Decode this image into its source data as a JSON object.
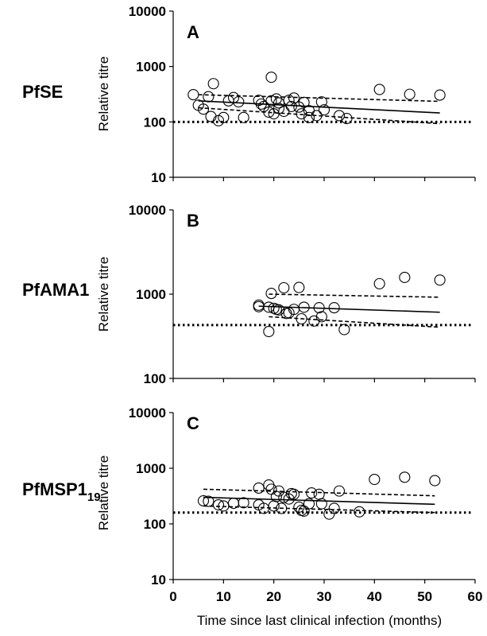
{
  "figure": {
    "xlabel": "Time since last clinical infection (months)"
  },
  "chart_data": [
    {
      "type": "scatter",
      "panel": "A",
      "antigen": "PfSE",
      "antigen_sub": "",
      "ylabel": "Relative titre",
      "yscale": "log",
      "ylim": [
        10,
        10000
      ],
      "yticks": [
        "10",
        "100",
        "1000",
        "10000"
      ],
      "xlim": [
        0,
        60
      ],
      "threshold": 100,
      "points": [
        [
          4,
          310
        ],
        [
          5,
          200
        ],
        [
          6,
          170
        ],
        [
          7,
          285
        ],
        [
          7.5,
          125
        ],
        [
          8,
          490
        ],
        [
          9,
          105
        ],
        [
          10,
          120
        ],
        [
          11,
          240
        ],
        [
          12,
          275
        ],
        [
          13,
          230
        ],
        [
          14,
          120
        ],
        [
          17,
          245
        ],
        [
          17.5,
          210
        ],
        [
          18,
          190
        ],
        [
          19,
          150
        ],
        [
          19.5,
          240
        ],
        [
          19.5,
          640
        ],
        [
          20,
          140
        ],
        [
          20.5,
          260
        ],
        [
          21,
          220
        ],
        [
          21,
          175
        ],
        [
          22,
          155
        ],
        [
          23,
          245
        ],
        [
          23.5,
          190
        ],
        [
          24,
          270
        ],
        [
          25,
          185
        ],
        [
          25.5,
          140
        ],
        [
          26,
          225
        ],
        [
          27,
          160
        ],
        [
          27,
          120
        ],
        [
          28.5,
          130
        ],
        [
          29.5,
          230
        ],
        [
          30,
          165
        ],
        [
          33,
          130
        ],
        [
          34.5,
          115
        ],
        [
          41,
          385
        ],
        [
          47,
          315
        ],
        [
          53,
          305
        ]
      ],
      "fit": [
        [
          5,
          240
        ],
        [
          53,
          145
        ]
      ],
      "ci_upper": [
        [
          5,
          310
        ],
        [
          53,
          235
        ]
      ],
      "ci_lower": [
        [
          5,
          180
        ],
        [
          53,
          93
        ]
      ]
    },
    {
      "type": "scatter",
      "panel": "B",
      "antigen": "PfAMA1",
      "antigen_sub": "",
      "ylabel": "Relative titre",
      "yscale": "log",
      "ylim": [
        100,
        10000
      ],
      "yticks": [
        "100",
        "1000",
        "10000"
      ],
      "xlim": [
        0,
        60
      ],
      "threshold": 430,
      "points": [
        [
          17,
          740
        ],
        [
          17,
          710
        ],
        [
          19,
          700
        ],
        [
          19,
          360
        ],
        [
          19.5,
          1020
        ],
        [
          20,
          680
        ],
        [
          20.5,
          660
        ],
        [
          21,
          650
        ],
        [
          22,
          1190
        ],
        [
          22.5,
          590
        ],
        [
          23,
          600
        ],
        [
          24,
          660
        ],
        [
          25,
          1200
        ],
        [
          25.5,
          510
        ],
        [
          26,
          700
        ],
        [
          28,
          480
        ],
        [
          29,
          690
        ],
        [
          29.5,
          540
        ],
        [
          32,
          690
        ],
        [
          34,
          380
        ],
        [
          41,
          1330
        ],
        [
          46,
          1580
        ],
        [
          53,
          1470
        ]
      ],
      "fit": [
        [
          17,
          720
        ],
        [
          53,
          610
        ]
      ],
      "ci_upper": [
        [
          19,
          1000
        ],
        [
          53,
          920
        ]
      ],
      "ci_lower": [
        [
          19,
          540
        ],
        [
          53,
          405
        ]
      ]
    },
    {
      "type": "scatter",
      "panel": "C",
      "antigen": "PfMSP1",
      "antigen_sub": "19",
      "ylabel": "Relative titre",
      "yscale": "log",
      "ylim": [
        10,
        10000
      ],
      "yticks": [
        "10",
        "100",
        "1000",
        "10000"
      ],
      "xlim": [
        0,
        60
      ],
      "threshold": 160,
      "points": [
        [
          6,
          260
        ],
        [
          7,
          255
        ],
        [
          9,
          220
        ],
        [
          10,
          210
        ],
        [
          12,
          235
        ],
        [
          14,
          240
        ],
        [
          17,
          220
        ],
        [
          17,
          440
        ],
        [
          18,
          190
        ],
        [
          19,
          500
        ],
        [
          19.5,
          420
        ],
        [
          20,
          210
        ],
        [
          20.5,
          310
        ],
        [
          21,
          390
        ],
        [
          21.5,
          190
        ],
        [
          22,
          300
        ],
        [
          23,
          280
        ],
        [
          23.5,
          350
        ],
        [
          24,
          340
        ],
        [
          25,
          200
        ],
        [
          25.5,
          175
        ],
        [
          26,
          170
        ],
        [
          27,
          230
        ],
        [
          27.5,
          360
        ],
        [
          29,
          340
        ],
        [
          29.5,
          230
        ],
        [
          31,
          150
        ],
        [
          32,
          190
        ],
        [
          33,
          390
        ],
        [
          37,
          165
        ],
        [
          40,
          630
        ],
        [
          46,
          690
        ],
        [
          52,
          600
        ]
      ],
      "fit": [
        [
          6,
          300
        ],
        [
          52,
          225
        ]
      ],
      "ci_upper": [
        [
          6,
          420
        ],
        [
          52,
          320
        ]
      ],
      "ci_lower": [
        [
          6,
          210
        ],
        [
          52,
          160
        ]
      ]
    }
  ],
  "xticks": [
    "0",
    "10",
    "20",
    "30",
    "40",
    "50",
    "60"
  ]
}
